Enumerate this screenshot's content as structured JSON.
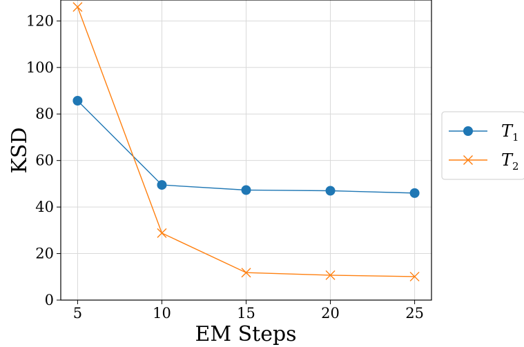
{
  "chart_data": {
    "type": "line",
    "xlabel": "EM Steps",
    "ylabel": "KSD",
    "x": [
      5,
      10,
      15,
      20,
      25
    ],
    "xticks": [
      5,
      10,
      15,
      20,
      25
    ],
    "yticks": [
      0,
      20,
      40,
      60,
      80,
      100,
      120
    ],
    "xlim": [
      4,
      26
    ],
    "ylim": [
      0,
      129
    ],
    "grid": true,
    "legend_position": "outside-right",
    "series": [
      {
        "name": "T_1",
        "name_base": "T",
        "name_sub": "1",
        "marker": "circle",
        "color": "#1f77b4",
        "values": [
          85.7,
          49.5,
          47.3,
          47.0,
          46.0
        ]
      },
      {
        "name": "T_2",
        "name_base": "T",
        "name_sub": "2",
        "marker": "x",
        "color": "#ff7f0e",
        "values": [
          126.0,
          28.8,
          11.8,
          10.7,
          10.1
        ]
      }
    ]
  }
}
